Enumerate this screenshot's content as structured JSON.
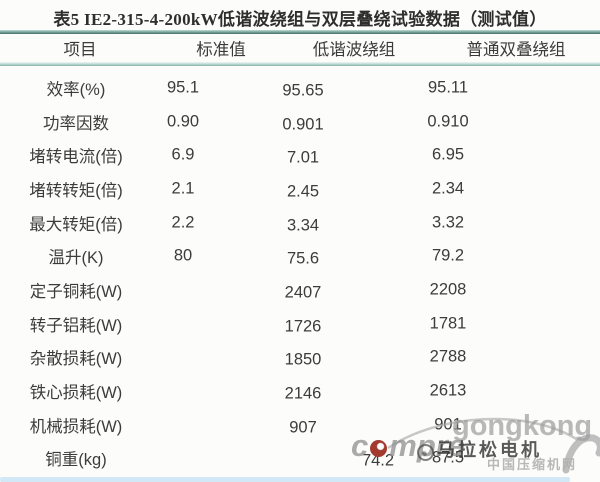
{
  "title": "表5 IE2-315-4-200kW低谐波绕组与双层叠绕试验数据（测试值）",
  "table": {
    "columns": [
      "项目",
      "标准值",
      "低谐波绕组",
      "普通双叠绕组"
    ],
    "rows": [
      [
        "效率(%)",
        "95.1",
        "95.65",
        "95.11"
      ],
      [
        "功率因数",
        "0.90",
        "0.901",
        "0.910"
      ],
      [
        "堵转电流(倍)",
        "6.9",
        "7.01",
        "6.95"
      ],
      [
        "堵转转矩(倍)",
        "2.1",
        "2.45",
        "2.34"
      ],
      [
        "最大转矩(倍)",
        "2.2",
        "3.34",
        "3.32"
      ],
      [
        "温升(K)",
        "80",
        "75.6",
        "79.2"
      ],
      [
        "定子铜耗(W)",
        "",
        "2407",
        "2208"
      ],
      [
        "转子铝耗(W)",
        "",
        "1726",
        "1781"
      ],
      [
        "杂散损耗(W)",
        "",
        "1850",
        "2788"
      ],
      [
        "铁心损耗(W)",
        "",
        "2146",
        "2613"
      ],
      [
        "机械损耗(W)",
        "",
        "907",
        "901"
      ],
      [
        "铜重(kg)",
        "",
        "74.2",
        "87.5"
      ]
    ]
  },
  "watermarks": {
    "gongkong_text": "gongkong",
    "compressor_prefix": "c",
    "compressor_suffix": "mpre",
    "site_cn": "中国压缩机网",
    "stamp": "马拉松电机",
    "dot_color": "#a23a2e"
  },
  "colors": {
    "rule_teal_dark": "#456f66",
    "rule_teal_light": "#b9d7d1",
    "bottom_strip": "#d2e8f6",
    "watermark_gray": "#9e9e9e",
    "stamp_dark": "#343434",
    "text": "#3c3c3c"
  }
}
